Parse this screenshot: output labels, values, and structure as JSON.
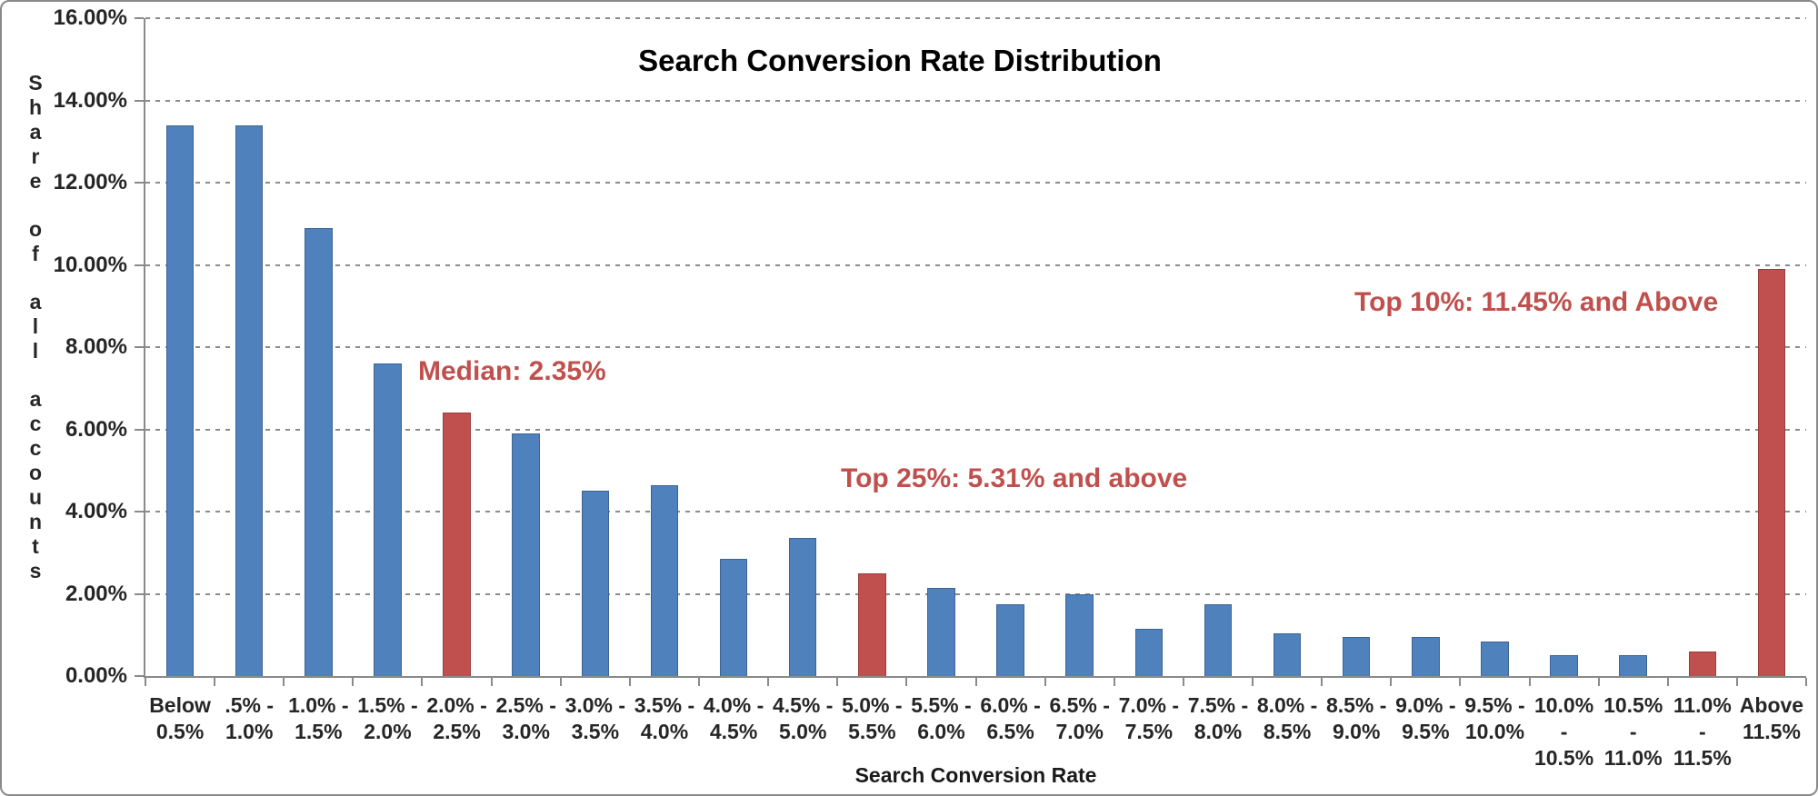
{
  "colors": {
    "bar_blue": "#4F81BD",
    "bar_red": "#C0504D",
    "annotation_red": "#C0504D",
    "grid": "#8C8C8C",
    "axis": "#8A8A8A",
    "label_text": "#262626",
    "title_text": "#000000"
  },
  "chart_data": {
    "type": "bar",
    "title": "Search Conversion Rate Distribution",
    "xlabel": "Search Conversion Rate",
    "ylabel": "Share of all accounts",
    "ylim": [
      0,
      16
    ],
    "ytick_step": 2,
    "grid": "horizontal dashed",
    "legend": "none",
    "y_ticks": [
      "0.00%",
      "2.00%",
      "4.00%",
      "6.00%",
      "8.00%",
      "10.00%",
      "12.00%",
      "14.00%",
      "16.00%"
    ],
    "categories": [
      "Below 0.5%",
      ".5% - 1.0%",
      "1.0% - 1.5%",
      "1.5% - 2.0%",
      "2.0% - 2.5%",
      "2.5% - 3.0%",
      "3.0% - 3.5%",
      "3.5% - 4.0%",
      "4.0% - 4.5%",
      "4.5% - 5.0%",
      "5.0% - 5.5%",
      "5.5% - 6.0%",
      "6.0% - 6.5%",
      "6.5% - 7.0%",
      "7.0% - 7.5%",
      "7.5% - 8.0%",
      "8.0% - 8.5%",
      "8.5% - 9.0%",
      "9.0% - 9.5%",
      "9.5% - 10.0%",
      "10.0% - 10.5%",
      "10.5% - 11.0%",
      "11.0% - 11.5%",
      "Above 11.5%"
    ],
    "values": [
      13.4,
      13.4,
      10.9,
      7.6,
      6.4,
      5.9,
      4.5,
      4.65,
      2.85,
      3.35,
      2.5,
      2.15,
      1.75,
      2.0,
      1.15,
      1.75,
      1.05,
      0.95,
      0.95,
      0.85,
      0.5,
      0.5,
      0.6,
      9.9
    ],
    "highlighted_red_indices": [
      4,
      10,
      22,
      23
    ],
    "annotations": [
      {
        "text": "Median: 2.35%"
      },
      {
        "text": "Top 25%: 5.31% and above"
      },
      {
        "text": "Top 10%: 11.45% and Above"
      }
    ]
  }
}
